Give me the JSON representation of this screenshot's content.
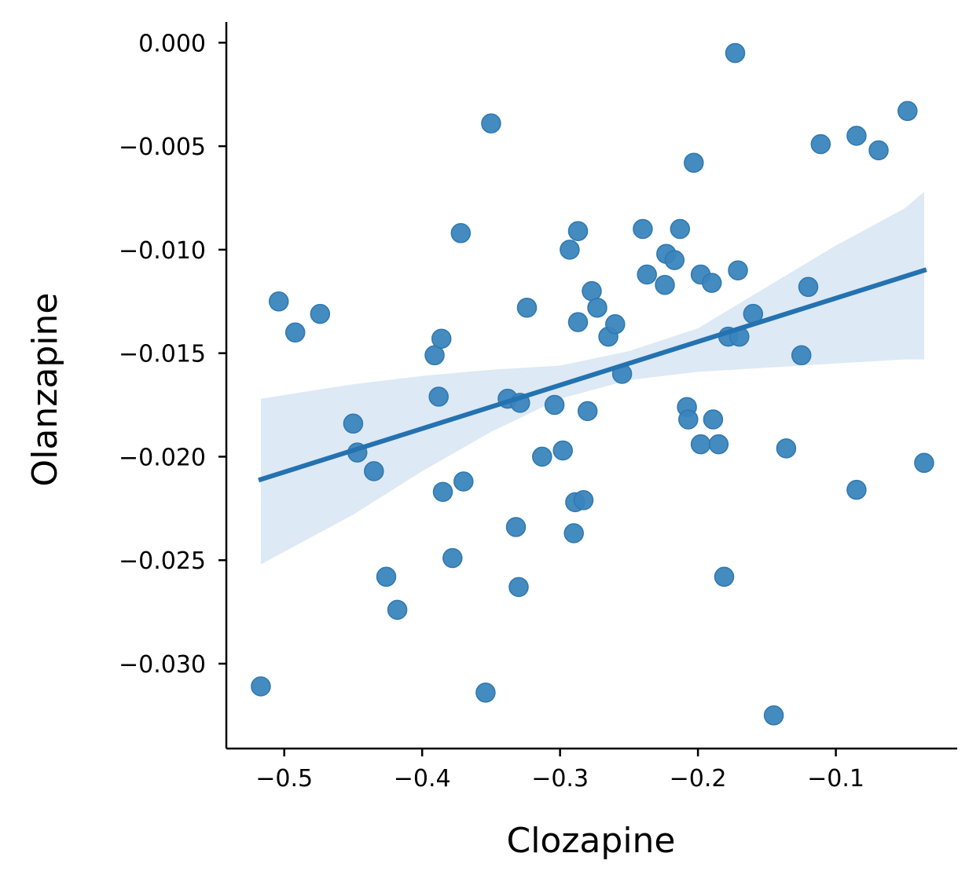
{
  "chart_data": {
    "type": "scatter",
    "title": "",
    "xlabel": "Clozapine",
    "ylabel": "Olanzapine",
    "xlim": [
      -0.542,
      -0.012
    ],
    "ylim": [
      -0.0341,
      0.001
    ],
    "xticks": [
      -0.5,
      -0.4,
      -0.3,
      -0.2,
      -0.1
    ],
    "yticks": [
      0.0,
      -0.005,
      -0.01,
      -0.015,
      -0.02,
      -0.025,
      -0.03
    ],
    "xtick_labels": [
      "−0.5",
      "−0.4",
      "−0.3",
      "−0.2",
      "−0.1"
    ],
    "ytick_labels": [
      "0.000",
      "−0.005",
      "−0.010",
      "−0.015",
      "−0.020",
      "−0.025",
      "−0.030"
    ],
    "grid": false,
    "point_color": "#3a85bd",
    "line_color": "#2472b0",
    "band_color": "#dde9f4",
    "points": [
      {
        "x": -0.517,
        "y": -0.0311
      },
      {
        "x": -0.504,
        "y": -0.0125
      },
      {
        "x": -0.492,
        "y": -0.014
      },
      {
        "x": -0.474,
        "y": -0.0131
      },
      {
        "x": -0.45,
        "y": -0.0184
      },
      {
        "x": -0.447,
        "y": -0.0198
      },
      {
        "x": -0.435,
        "y": -0.0207
      },
      {
        "x": -0.426,
        "y": -0.0258
      },
      {
        "x": -0.418,
        "y": -0.0274
      },
      {
        "x": -0.391,
        "y": -0.0151
      },
      {
        "x": -0.388,
        "y": -0.0171
      },
      {
        "x": -0.386,
        "y": -0.0143
      },
      {
        "x": -0.385,
        "y": -0.0217
      },
      {
        "x": -0.378,
        "y": -0.0249
      },
      {
        "x": -0.37,
        "y": -0.0212
      },
      {
        "x": -0.372,
        "y": -0.0092
      },
      {
        "x": -0.354,
        "y": -0.0314
      },
      {
        "x": -0.35,
        "y": -0.0039
      },
      {
        "x": -0.338,
        "y": -0.0172
      },
      {
        "x": -0.332,
        "y": -0.0234
      },
      {
        "x": -0.33,
        "y": -0.0263
      },
      {
        "x": -0.329,
        "y": -0.0174
      },
      {
        "x": -0.324,
        "y": -0.0128
      },
      {
        "x": -0.313,
        "y": -0.02
      },
      {
        "x": -0.304,
        "y": -0.0175
      },
      {
        "x": -0.298,
        "y": -0.0197
      },
      {
        "x": -0.293,
        "y": -0.01
      },
      {
        "x": -0.29,
        "y": -0.0237
      },
      {
        "x": -0.289,
        "y": -0.0222
      },
      {
        "x": -0.287,
        "y": -0.0091
      },
      {
        "x": -0.287,
        "y": -0.0135
      },
      {
        "x": -0.283,
        "y": -0.0221
      },
      {
        "x": -0.28,
        "y": -0.0178
      },
      {
        "x": -0.277,
        "y": -0.012
      },
      {
        "x": -0.273,
        "y": -0.0128
      },
      {
        "x": -0.265,
        "y": -0.0142
      },
      {
        "x": -0.26,
        "y": -0.0136
      },
      {
        "x": -0.255,
        "y": -0.016
      },
      {
        "x": -0.24,
        "y": -0.009
      },
      {
        "x": -0.237,
        "y": -0.0112
      },
      {
        "x": -0.224,
        "y": -0.0117
      },
      {
        "x": -0.223,
        "y": -0.0102
      },
      {
        "x": -0.217,
        "y": -0.0105
      },
      {
        "x": -0.213,
        "y": -0.009
      },
      {
        "x": -0.208,
        "y": -0.0176
      },
      {
        "x": -0.207,
        "y": -0.0182
      },
      {
        "x": -0.203,
        "y": -0.0058
      },
      {
        "x": -0.198,
        "y": -0.0194
      },
      {
        "x": -0.198,
        "y": -0.0112
      },
      {
        "x": -0.19,
        "y": -0.0116
      },
      {
        "x": -0.189,
        "y": -0.0182
      },
      {
        "x": -0.185,
        "y": -0.0194
      },
      {
        "x": -0.181,
        "y": -0.0258
      },
      {
        "x": -0.178,
        "y": -0.0142
      },
      {
        "x": -0.173,
        "y": -0.0005
      },
      {
        "x": -0.171,
        "y": -0.011
      },
      {
        "x": -0.17,
        "y": -0.0142
      },
      {
        "x": -0.16,
        "y": -0.0131
      },
      {
        "x": -0.145,
        "y": -0.0325
      },
      {
        "x": -0.136,
        "y": -0.0196
      },
      {
        "x": -0.125,
        "y": -0.0151
      },
      {
        "x": -0.12,
        "y": -0.0118
      },
      {
        "x": -0.111,
        "y": -0.0049
      },
      {
        "x": -0.085,
        "y": -0.0045
      },
      {
        "x": -0.085,
        "y": -0.0216
      },
      {
        "x": -0.069,
        "y": -0.0052
      },
      {
        "x": -0.048,
        "y": -0.0033
      },
      {
        "x": -0.036,
        "y": -0.0203
      }
    ],
    "regression": {
      "x": [
        -0.517,
        -0.036
      ],
      "y": [
        -0.0211,
        -0.011
      ]
    },
    "confidence_band": {
      "x": [
        -0.517,
        -0.45,
        -0.4,
        -0.35,
        -0.3,
        -0.25,
        -0.2,
        -0.15,
        -0.1,
        -0.05,
        -0.036
      ],
      "upper": [
        -0.0172,
        -0.0165,
        -0.0161,
        -0.0158,
        -0.0156,
        -0.0149,
        -0.0138,
        -0.0118,
        -0.0098,
        -0.008,
        -0.0072
      ],
      "lower": [
        -0.0252,
        -0.0228,
        -0.0207,
        -0.0188,
        -0.0172,
        -0.0163,
        -0.0159,
        -0.0157,
        -0.0155,
        -0.0153,
        -0.0153
      ]
    }
  }
}
